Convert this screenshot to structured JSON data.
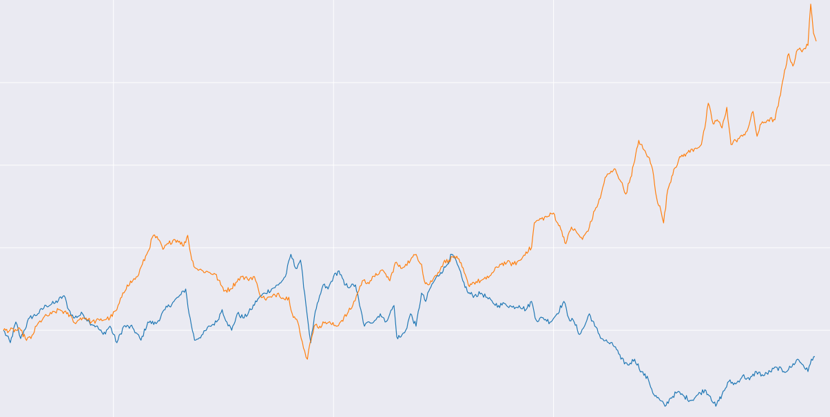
{
  "chart_data": {
    "type": "line",
    "background": "#eaeaf2",
    "grid": true,
    "grid_color": "#ffffff",
    "title": "",
    "xlabel": "",
    "ylabel": "",
    "legend": "none",
    "x_range": [
      0,
      1180
    ],
    "y_range": [
      -1.0,
      4.0
    ],
    "x_gridlines": [
      160,
      480,
      800
    ],
    "y_gridlines": [
      0,
      1,
      2,
      3
    ],
    "series": [
      {
        "color": "#1f77b4",
        "points": [
          [
            0,
            0.0
          ],
          [
            10,
            -0.15
          ],
          [
            18,
            0.1
          ],
          [
            25,
            -0.1
          ],
          [
            38,
            0.15
          ],
          [
            50,
            0.2
          ],
          [
            62,
            0.3
          ],
          [
            75,
            0.33
          ],
          [
            88,
            0.42
          ],
          [
            95,
            0.25
          ],
          [
            102,
            0.15
          ],
          [
            115,
            0.2
          ],
          [
            125,
            0.1
          ],
          [
            135,
            0.05
          ],
          [
            145,
            -0.05
          ],
          [
            155,
            0.05
          ],
          [
            165,
            -0.15
          ],
          [
            175,
            0.05
          ],
          [
            188,
            0.03
          ],
          [
            200,
            -0.12
          ],
          [
            210,
            0.1
          ],
          [
            222,
            0.08
          ],
          [
            235,
            0.25
          ],
          [
            248,
            0.35
          ],
          [
            258,
            0.43
          ],
          [
            265,
            0.5
          ],
          [
            270,
            0.2
          ],
          [
            278,
            -0.12
          ],
          [
            290,
            -0.05
          ],
          [
            300,
            0.05
          ],
          [
            310,
            0.1
          ],
          [
            318,
            0.25
          ],
          [
            325,
            0.1
          ],
          [
            332,
            0.0
          ],
          [
            340,
            0.2
          ],
          [
            350,
            0.15
          ],
          [
            360,
            0.25
          ],
          [
            370,
            0.38
          ],
          [
            380,
            0.45
          ],
          [
            390,
            0.5
          ],
          [
            400,
            0.55
          ],
          [
            410,
            0.65
          ],
          [
            418,
            0.92
          ],
          [
            425,
            0.75
          ],
          [
            432,
            0.85
          ],
          [
            438,
            0.45
          ],
          [
            443,
            0.1
          ],
          [
            447,
            -0.15
          ],
          [
            452,
            0.15
          ],
          [
            458,
            0.35
          ],
          [
            465,
            0.55
          ],
          [
            472,
            0.5
          ],
          [
            480,
            0.65
          ],
          [
            488,
            0.72
          ],
          [
            496,
            0.55
          ],
          [
            505,
            0.53
          ],
          [
            512,
            0.55
          ],
          [
            518,
            0.3
          ],
          [
            525,
            0.05
          ],
          [
            532,
            0.1
          ],
          [
            540,
            0.12
          ],
          [
            548,
            0.2
          ],
          [
            555,
            0.1
          ],
          [
            562,
            0.2
          ],
          [
            568,
            0.3
          ],
          [
            572,
            -0.08
          ],
          [
            578,
            -0.08
          ],
          [
            585,
            0.0
          ],
          [
            592,
            0.2
          ],
          [
            600,
            0.05
          ],
          [
            608,
            0.45
          ],
          [
            614,
            0.35
          ],
          [
            620,
            0.5
          ],
          [
            628,
            0.62
          ],
          [
            636,
            0.7
          ],
          [
            644,
            0.78
          ],
          [
            652,
            0.92
          ],
          [
            660,
            0.8
          ],
          [
            668,
            0.6
          ],
          [
            676,
            0.45
          ],
          [
            685,
            0.42
          ],
          [
            695,
            0.45
          ],
          [
            705,
            0.38
          ],
          [
            712,
            0.33
          ],
          [
            720,
            0.3
          ],
          [
            730,
            0.32
          ],
          [
            740,
            0.28
          ],
          [
            750,
            0.3
          ],
          [
            760,
            0.25
          ],
          [
            768,
            0.35
          ],
          [
            775,
            0.12
          ],
          [
            785,
            0.15
          ],
          [
            795,
            0.1
          ],
          [
            805,
            0.2
          ],
          [
            815,
            0.35
          ],
          [
            822,
            0.15
          ],
          [
            830,
            0.1
          ],
          [
            838,
            -0.05
          ],
          [
            845,
            0.05
          ],
          [
            852,
            0.2
          ],
          [
            860,
            0.05
          ],
          [
            870,
            -0.1
          ],
          [
            880,
            -0.15
          ],
          [
            890,
            -0.2
          ],
          [
            898,
            -0.35
          ],
          [
            908,
            -0.42
          ],
          [
            918,
            -0.35
          ],
          [
            928,
            -0.5
          ],
          [
            938,
            -0.6
          ],
          [
            946,
            -0.78
          ],
          [
            955,
            -0.85
          ],
          [
            962,
            -0.92
          ],
          [
            970,
            -0.82
          ],
          [
            980,
            -0.75
          ],
          [
            990,
            -0.8
          ],
          [
            1000,
            -0.85
          ],
          [
            1010,
            -0.78
          ],
          [
            1020,
            -0.72
          ],
          [
            1028,
            -0.8
          ],
          [
            1036,
            -0.92
          ],
          [
            1045,
            -0.78
          ],
          [
            1055,
            -0.62
          ],
          [
            1065,
            -0.65
          ],
          [
            1075,
            -0.55
          ],
          [
            1085,
            -0.6
          ],
          [
            1095,
            -0.5
          ],
          [
            1105,
            -0.55
          ],
          [
            1115,
            -0.5
          ],
          [
            1125,
            -0.45
          ],
          [
            1135,
            -0.5
          ],
          [
            1145,
            -0.45
          ],
          [
            1155,
            -0.35
          ],
          [
            1163,
            -0.42
          ],
          [
            1170,
            -0.5
          ],
          [
            1175,
            -0.35
          ],
          [
            1180,
            -0.32
          ]
        ]
      },
      {
        "color": "#ff7f0e",
        "points": [
          [
            0,
            0.0
          ],
          [
            25,
            0.0
          ],
          [
            32,
            -0.1
          ],
          [
            40,
            -0.1
          ],
          [
            48,
            0.05
          ],
          [
            58,
            0.15
          ],
          [
            70,
            0.2
          ],
          [
            82,
            0.25
          ],
          [
            92,
            0.2
          ],
          [
            100,
            0.15
          ],
          [
            105,
            0.08
          ],
          [
            112,
            0.15
          ],
          [
            120,
            0.15
          ],
          [
            128,
            0.1
          ],
          [
            140,
            0.12
          ],
          [
            155,
            0.15
          ],
          [
            165,
            0.25
          ],
          [
            172,
            0.4
          ],
          [
            180,
            0.55
          ],
          [
            188,
            0.6
          ],
          [
            195,
            0.65
          ],
          [
            202,
            0.8
          ],
          [
            210,
            0.95
          ],
          [
            218,
            1.15
          ],
          [
            225,
            1.1
          ],
          [
            232,
            0.98
          ],
          [
            240,
            1.05
          ],
          [
            248,
            1.1
          ],
          [
            256,
            1.08
          ],
          [
            262,
            1.02
          ],
          [
            268,
            1.15
          ],
          [
            274,
            0.85
          ],
          [
            280,
            0.75
          ],
          [
            290,
            0.72
          ],
          [
            300,
            0.7
          ],
          [
            308,
            0.68
          ],
          [
            316,
            0.55
          ],
          [
            322,
            0.48
          ],
          [
            330,
            0.5
          ],
          [
            338,
            0.58
          ],
          [
            345,
            0.65
          ],
          [
            355,
            0.62
          ],
          [
            365,
            0.65
          ],
          [
            372,
            0.45
          ],
          [
            380,
            0.38
          ],
          [
            390,
            0.4
          ],
          [
            400,
            0.45
          ],
          [
            408,
            0.38
          ],
          [
            415,
            0.4
          ],
          [
            420,
            0.2
          ],
          [
            428,
            0.1
          ],
          [
            433,
            -0.1
          ],
          [
            438,
            -0.25
          ],
          [
            442,
            -0.35
          ],
          [
            446,
            -0.15
          ],
          [
            452,
            0.05
          ],
          [
            460,
            0.05
          ],
          [
            468,
            0.1
          ],
          [
            476,
            0.08
          ],
          [
            484,
            0.05
          ],
          [
            492,
            0.12
          ],
          [
            500,
            0.2
          ],
          [
            508,
            0.3
          ],
          [
            515,
            0.45
          ],
          [
            522,
            0.6
          ],
          [
            530,
            0.58
          ],
          [
            540,
            0.65
          ],
          [
            548,
            0.72
          ],
          [
            556,
            0.68
          ],
          [
            562,
            0.6
          ],
          [
            570,
            0.82
          ],
          [
            578,
            0.75
          ],
          [
            585,
            0.8
          ],
          [
            592,
            0.85
          ],
          [
            600,
            0.92
          ],
          [
            608,
            0.8
          ],
          [
            612,
            0.6
          ],
          [
            618,
            0.55
          ],
          [
            625,
            0.62
          ],
          [
            632,
            0.7
          ],
          [
            640,
            0.82
          ],
          [
            648,
            0.85
          ],
          [
            656,
            0.9
          ],
          [
            664,
            0.82
          ],
          [
            670,
            0.7
          ],
          [
            676,
            0.55
          ],
          [
            684,
            0.58
          ],
          [
            694,
            0.6
          ],
          [
            702,
            0.62
          ],
          [
            712,
            0.7
          ],
          [
            722,
            0.8
          ],
          [
            732,
            0.82
          ],
          [
            742,
            0.8
          ],
          [
            752,
            0.85
          ],
          [
            760,
            0.95
          ],
          [
            768,
            1.0
          ],
          [
            772,
            1.3
          ],
          [
            782,
            1.35
          ],
          [
            792,
            1.38
          ],
          [
            800,
            1.42
          ],
          [
            806,
            1.3
          ],
          [
            812,
            1.2
          ],
          [
            818,
            1.05
          ],
          [
            826,
            1.25
          ],
          [
            834,
            1.18
          ],
          [
            842,
            1.1
          ],
          [
            852,
            1.25
          ],
          [
            860,
            1.45
          ],
          [
            868,
            1.6
          ],
          [
            875,
            1.85
          ],
          [
            882,
            1.9
          ],
          [
            890,
            1.95
          ],
          [
            898,
            1.8
          ],
          [
            905,
            1.65
          ],
          [
            912,
            1.85
          ],
          [
            918,
            2.05
          ],
          [
            924,
            2.3
          ],
          [
            930,
            2.2
          ],
          [
            938,
            2.1
          ],
          [
            944,
            1.95
          ],
          [
            950,
            1.6
          ],
          [
            956,
            1.45
          ],
          [
            960,
            1.3
          ],
          [
            966,
            1.7
          ],
          [
            975,
            1.95
          ],
          [
            985,
            2.1
          ],
          [
            995,
            2.15
          ],
          [
            1005,
            2.2
          ],
          [
            1015,
            2.25
          ],
          [
            1020,
            2.45
          ],
          [
            1025,
            2.75
          ],
          [
            1032,
            2.5
          ],
          [
            1038,
            2.55
          ],
          [
            1045,
            2.45
          ],
          [
            1052,
            2.7
          ],
          [
            1058,
            2.25
          ],
          [
            1065,
            2.3
          ],
          [
            1075,
            2.35
          ],
          [
            1083,
            2.45
          ],
          [
            1090,
            2.65
          ],
          [
            1096,
            2.35
          ],
          [
            1102,
            2.5
          ],
          [
            1112,
            2.55
          ],
          [
            1122,
            2.55
          ],
          [
            1130,
            2.85
          ],
          [
            1136,
            3.15
          ],
          [
            1142,
            3.35
          ],
          [
            1148,
            3.2
          ],
          [
            1155,
            3.4
          ],
          [
            1163,
            3.4
          ],
          [
            1170,
            3.45
          ],
          [
            1174,
            3.95
          ],
          [
            1178,
            3.6
          ],
          [
            1182,
            3.5
          ]
        ]
      }
    ]
  }
}
